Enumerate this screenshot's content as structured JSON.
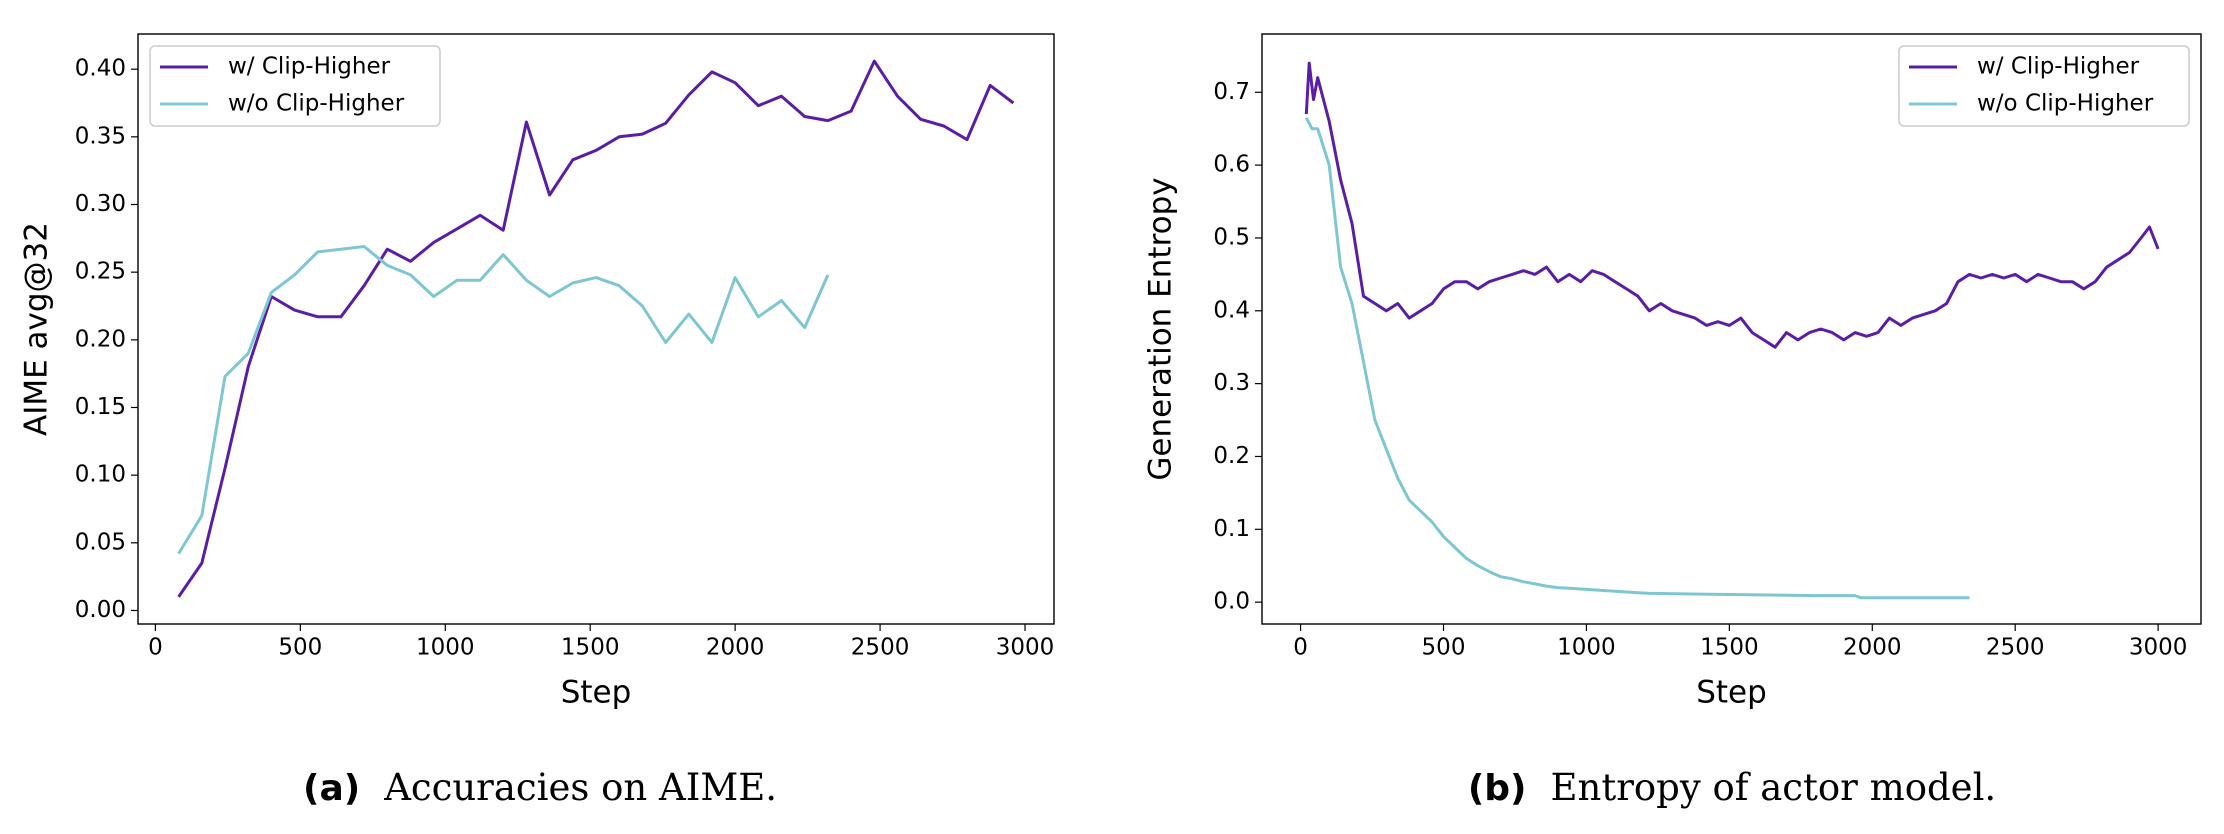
{
  "chart_data": [
    {
      "type": "line",
      "caption_label": "(a)",
      "caption_text": "Accuracies on AIME.",
      "x_label": "Step",
      "y_label": "AIME avg@32",
      "legend": "upper left",
      "xlim": [
        -60,
        3100
      ],
      "xticks": [
        0,
        500,
        1000,
        1500,
        2000,
        2500,
        3000
      ],
      "ylim": [
        -0.01,
        0.426
      ],
      "yticks": [
        {
          "value": 0,
          "label": "0.00"
        },
        {
          "value": 0.05,
          "label": "0.05"
        },
        {
          "value": 0.1,
          "label": "0.10"
        },
        {
          "value": 0.15,
          "label": "0.15"
        },
        {
          "value": 0.2,
          "label": "0.20"
        },
        {
          "value": 0.25,
          "label": "0.25"
        },
        {
          "value": 0.3,
          "label": "0.30"
        },
        {
          "value": 0.35,
          "label": "0.35"
        },
        {
          "value": 0.4,
          "label": "0.40"
        }
      ],
      "series": [
        {
          "name": "w/ Clip-Higher",
          "color": "#5a1ea6",
          "x": [
            80,
            160,
            240,
            320,
            400,
            480,
            560,
            640,
            720,
            800,
            880,
            960,
            1040,
            1120,
            1200,
            1280,
            1360,
            1440,
            1520,
            1600,
            1680,
            1760,
            1840,
            1920,
            2000,
            2080,
            2160,
            2240,
            2320,
            2400,
            2480,
            2560,
            2640,
            2720,
            2800,
            2880,
            2960
          ],
          "values": [
            0.01,
            0.035,
            0.105,
            0.18,
            0.232,
            0.222,
            0.217,
            0.217,
            0.24,
            0.267,
            0.258,
            0.272,
            0.282,
            0.292,
            0.281,
            0.361,
            0.307,
            0.333,
            0.34,
            0.35,
            0.352,
            0.36,
            0.381,
            0.398,
            0.39,
            0.373,
            0.38,
            0.365,
            0.362,
            0.369,
            0.406,
            0.38,
            0.363,
            0.358,
            0.348,
            0.388,
            0.375
          ]
        },
        {
          "name": "w/o Clip-Higher",
          "color": "#7fc6d3",
          "x": [
            80,
            160,
            240,
            320,
            400,
            480,
            560,
            640,
            720,
            800,
            880,
            960,
            1040,
            1120,
            1200,
            1280,
            1360,
            1440,
            1520,
            1600,
            1680,
            1760,
            1840,
            1920,
            2000,
            2080,
            2160,
            2240,
            2320
          ],
          "values": [
            0.042,
            0.07,
            0.173,
            0.19,
            0.235,
            0.248,
            0.265,
            0.267,
            0.269,
            0.255,
            0.248,
            0.232,
            0.244,
            0.244,
            0.263,
            0.244,
            0.232,
            0.242,
            0.246,
            0.24,
            0.225,
            0.198,
            0.219,
            0.198,
            0.246,
            0.217,
            0.229,
            0.209,
            0.248
          ]
        }
      ]
    },
    {
      "type": "line",
      "caption_label": "(b)",
      "caption_text": "Entropy of actor model.",
      "x_label": "Step",
      "y_label": "Generation Entropy",
      "legend": "upper right",
      "xlim": [
        -135,
        3150
      ],
      "xticks": [
        0,
        500,
        1000,
        1500,
        2000,
        2500,
        3000
      ],
      "ylim": [
        -0.03,
        0.78
      ],
      "yticks": [
        {
          "value": 0,
          "label": "0.0"
        },
        {
          "value": 0.1,
          "label": "0.1"
        },
        {
          "value": 0.2,
          "label": "0.2"
        },
        {
          "value": 0.3,
          "label": "0.3"
        },
        {
          "value": 0.4,
          "label": "0.4"
        },
        {
          "value": 0.5,
          "label": "0.5"
        },
        {
          "value": 0.6,
          "label": "0.6"
        },
        {
          "value": 0.7,
          "label": "0.7"
        }
      ],
      "series": [
        {
          "name": "w/ Clip-Higher",
          "color": "#5a1ea6",
          "x": [
            20,
            30,
            45,
            60,
            100,
            140,
            180,
            220,
            260,
            300,
            340,
            380,
            420,
            460,
            500,
            540,
            580,
            620,
            660,
            700,
            740,
            780,
            820,
            860,
            900,
            940,
            980,
            1020,
            1060,
            1100,
            1140,
            1180,
            1220,
            1260,
            1300,
            1340,
            1380,
            1420,
            1460,
            1500,
            1540,
            1580,
            1620,
            1660,
            1700,
            1740,
            1780,
            1820,
            1860,
            1900,
            1940,
            1980,
            2020,
            2060,
            2100,
            2140,
            2180,
            2220,
            2260,
            2300,
            2340,
            2380,
            2420,
            2460,
            2500,
            2540,
            2580,
            2620,
            2660,
            2700,
            2740,
            2780,
            2820,
            2860,
            2900,
            2940,
            2970,
            3000
          ],
          "values": [
            0.67,
            0.74,
            0.69,
            0.72,
            0.66,
            0.58,
            0.52,
            0.42,
            0.41,
            0.4,
            0.41,
            0.39,
            0.4,
            0.41,
            0.43,
            0.44,
            0.44,
            0.43,
            0.44,
            0.445,
            0.45,
            0.455,
            0.45,
            0.46,
            0.44,
            0.45,
            0.44,
            0.455,
            0.45,
            0.44,
            0.43,
            0.42,
            0.4,
            0.41,
            0.4,
            0.395,
            0.39,
            0.38,
            0.385,
            0.38,
            0.39,
            0.37,
            0.36,
            0.35,
            0.37,
            0.36,
            0.37,
            0.375,
            0.37,
            0.36,
            0.37,
            0.365,
            0.37,
            0.39,
            0.38,
            0.39,
            0.395,
            0.4,
            0.41,
            0.44,
            0.45,
            0.445,
            0.45,
            0.445,
            0.45,
            0.44,
            0.45,
            0.445,
            0.44,
            0.44,
            0.43,
            0.44,
            0.46,
            0.47,
            0.48,
            0.5,
            0.515,
            0.485
          ]
        },
        {
          "name": "w/o Clip-Higher",
          "color": "#7fc6d3",
          "x": [
            20,
            40,
            60,
            100,
            140,
            180,
            220,
            260,
            300,
            340,
            380,
            420,
            460,
            500,
            540,
            580,
            620,
            660,
            700,
            740,
            780,
            820,
            860,
            900,
            940,
            980,
            1020,
            1060,
            1100,
            1140,
            1180,
            1220,
            1400,
            1600,
            1800,
            1940,
            1960,
            2100,
            2340
          ],
          "values": [
            0.665,
            0.65,
            0.65,
            0.6,
            0.46,
            0.41,
            0.33,
            0.25,
            0.21,
            0.17,
            0.14,
            0.125,
            0.11,
            0.09,
            0.075,
            0.06,
            0.05,
            0.042,
            0.035,
            0.032,
            0.028,
            0.025,
            0.022,
            0.02,
            0.019,
            0.018,
            0.017,
            0.016,
            0.015,
            0.014,
            0.013,
            0.012,
            0.011,
            0.01,
            0.009,
            0.009,
            0.006,
            0.006,
            0.006
          ]
        }
      ]
    }
  ]
}
